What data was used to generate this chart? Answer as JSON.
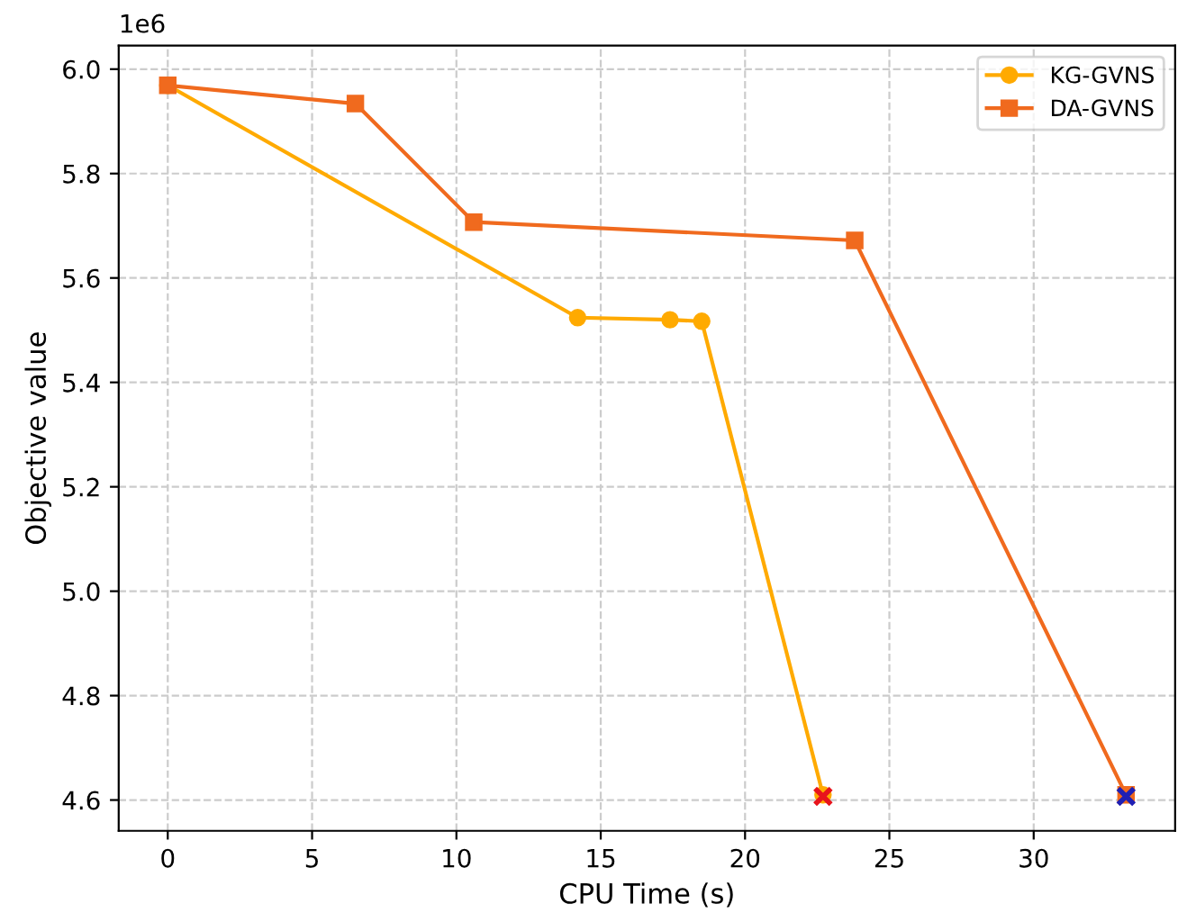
{
  "chart_data": {
    "type": "line",
    "xlabel": "CPU Time (s)",
    "ylabel": "Objective value",
    "annotations": [
      "1e6"
    ],
    "xlim": [
      -1.7,
      34.9
    ],
    "xticks": [
      0,
      5,
      10,
      15,
      20,
      25,
      30
    ],
    "ylim": [
      4.541,
      6.045
    ],
    "yticks": [
      4.6,
      4.8,
      {
        "value": 5,
        "label": "5.0"
      },
      5.2,
      5.4,
      5.6,
      5.8,
      {
        "value": 6,
        "label": "6.0"
      }
    ],
    "grid": true,
    "legend": "top right",
    "line_style": "solid",
    "series": [
      {
        "name": "KG-GVNS",
        "color": "#ffaa00",
        "marker": "circle",
        "x": [
          0,
          14.2,
          17.4,
          18.5,
          22.7
        ],
        "values": [
          5.969,
          5.524,
          5.52,
          5.517,
          4.61
        ]
      },
      {
        "name": "DA-GVNS",
        "color": "#f06a1e",
        "marker": "square",
        "x": [
          0,
          6.5,
          10.6,
          23.8,
          33.2
        ],
        "values": [
          5.969,
          5.934,
          5.707,
          5.672,
          4.61
        ]
      },
      {
        "type": "scatter",
        "color": "#e8141c",
        "marker": "cross",
        "x": [
          22.7
        ],
        "values": [
          4.607
        ]
      },
      {
        "type": "scatter",
        "color": "#1f1fb4",
        "marker": "cross",
        "x": [
          33.2
        ],
        "values": [
          4.607
        ]
      }
    ]
  }
}
